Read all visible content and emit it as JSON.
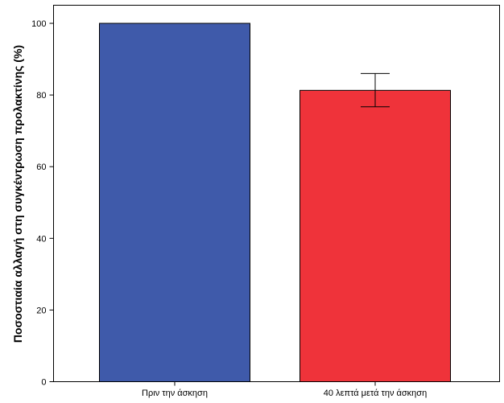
{
  "chart_data": {
    "type": "bar",
    "title": "",
    "xlabel": "",
    "ylabel": "Ποσοστιαία αλλαγή στη συγκέντρωση προλακτίνης (%)",
    "categories": [
      "Πριν την άσκηση",
      "40 λεπτά μετά την άσκηση"
    ],
    "values": [
      100,
      81.3
    ],
    "error_bars": [
      null,
      {
        "low": 76.7,
        "high": 86.0
      }
    ],
    "colors": [
      "#3f5aaa",
      "#ef333a"
    ],
    "ylim": [
      0,
      100
    ],
    "yticks": [
      0,
      20,
      40,
      60,
      80,
      100
    ],
    "ytick_labels": [
      "0",
      "20",
      "40",
      "60",
      "80",
      "100"
    ],
    "grid": false,
    "legend": "none"
  }
}
